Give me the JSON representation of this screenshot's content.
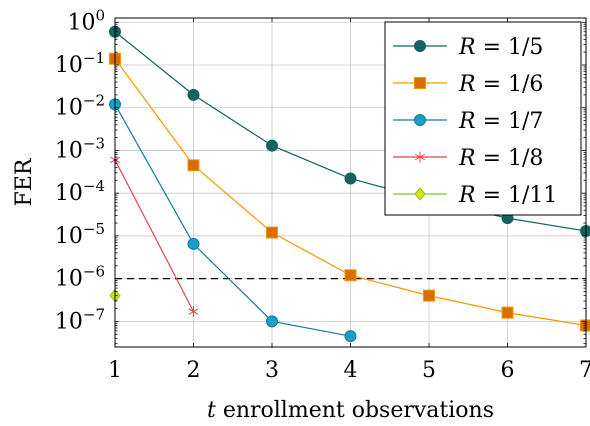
{
  "chart_data": {
    "type": "line",
    "title": "",
    "xlabel_italic": "t",
    "xlabel_rest": " enrollment observations",
    "ylabel": "FER",
    "x_ticks": [
      1,
      2,
      3,
      4,
      5,
      6,
      7
    ],
    "xlim": [
      1,
      7
    ],
    "ylim_log10": [
      -7.6,
      0.1
    ],
    "y_scale": "log",
    "y_ticks": [
      {
        "base": "10",
        "exp": "0",
        "value": 1
      },
      {
        "base": "10",
        "exp": "−1",
        "value": 0.1
      },
      {
        "base": "10",
        "exp": "−2",
        "value": 0.01
      },
      {
        "base": "10",
        "exp": "−3",
        "value": 0.001
      },
      {
        "base": "10",
        "exp": "−4",
        "value": 0.0001
      },
      {
        "base": "10",
        "exp": "−5",
        "value": 1e-05
      },
      {
        "base": "10",
        "exp": "−6",
        "value": 1e-06
      },
      {
        "base": "10",
        "exp": "−7",
        "value": 1e-07
      }
    ],
    "grid": true,
    "legend_position": "top-right",
    "threshold": {
      "value": 1e-06,
      "style": "dashed",
      "color": "#000000"
    },
    "series": [
      {
        "name_prefix": "R",
        "name_suffix": " = 1/5",
        "color": "#13635e",
        "marker": "circle",
        "x": [
          1,
          2,
          3,
          4,
          5,
          6,
          7
        ],
        "y": [
          0.6,
          0.02,
          0.0013,
          0.00022,
          7e-05,
          2.6e-05,
          1.3e-05
        ]
      },
      {
        "name_prefix": "R",
        "name_suffix": " = 1/6",
        "color": "#f39800",
        "marker_fill": "#d96d00",
        "marker": "square",
        "x": [
          1,
          2,
          3,
          4,
          5,
          6,
          7
        ],
        "y": [
          0.14,
          0.00045,
          1.2e-05,
          1.2e-06,
          4e-07,
          1.6e-07,
          8e-08
        ]
      },
      {
        "name_prefix": "R",
        "name_suffix": " = 1/7",
        "color": "#117a9e",
        "marker_fill": "#1a9fc9",
        "marker": "circle",
        "x": [
          1,
          2,
          3,
          4
        ],
        "y": [
          0.012,
          6.5e-06,
          1e-07,
          4.5e-08
        ]
      },
      {
        "name_prefix": "R",
        "name_suffix": " = 1/8",
        "color": "#e8414c",
        "marker": "star",
        "x": [
          1,
          2
        ],
        "y": [
          0.0006,
          1.7e-07
        ]
      },
      {
        "name_prefix": "R",
        "name_suffix": " = 1/11",
        "color": "#8dc21f",
        "marker_fill": "#d7e500",
        "marker": "diamond",
        "x": [
          1
        ],
        "y": [
          4e-07
        ]
      }
    ]
  }
}
